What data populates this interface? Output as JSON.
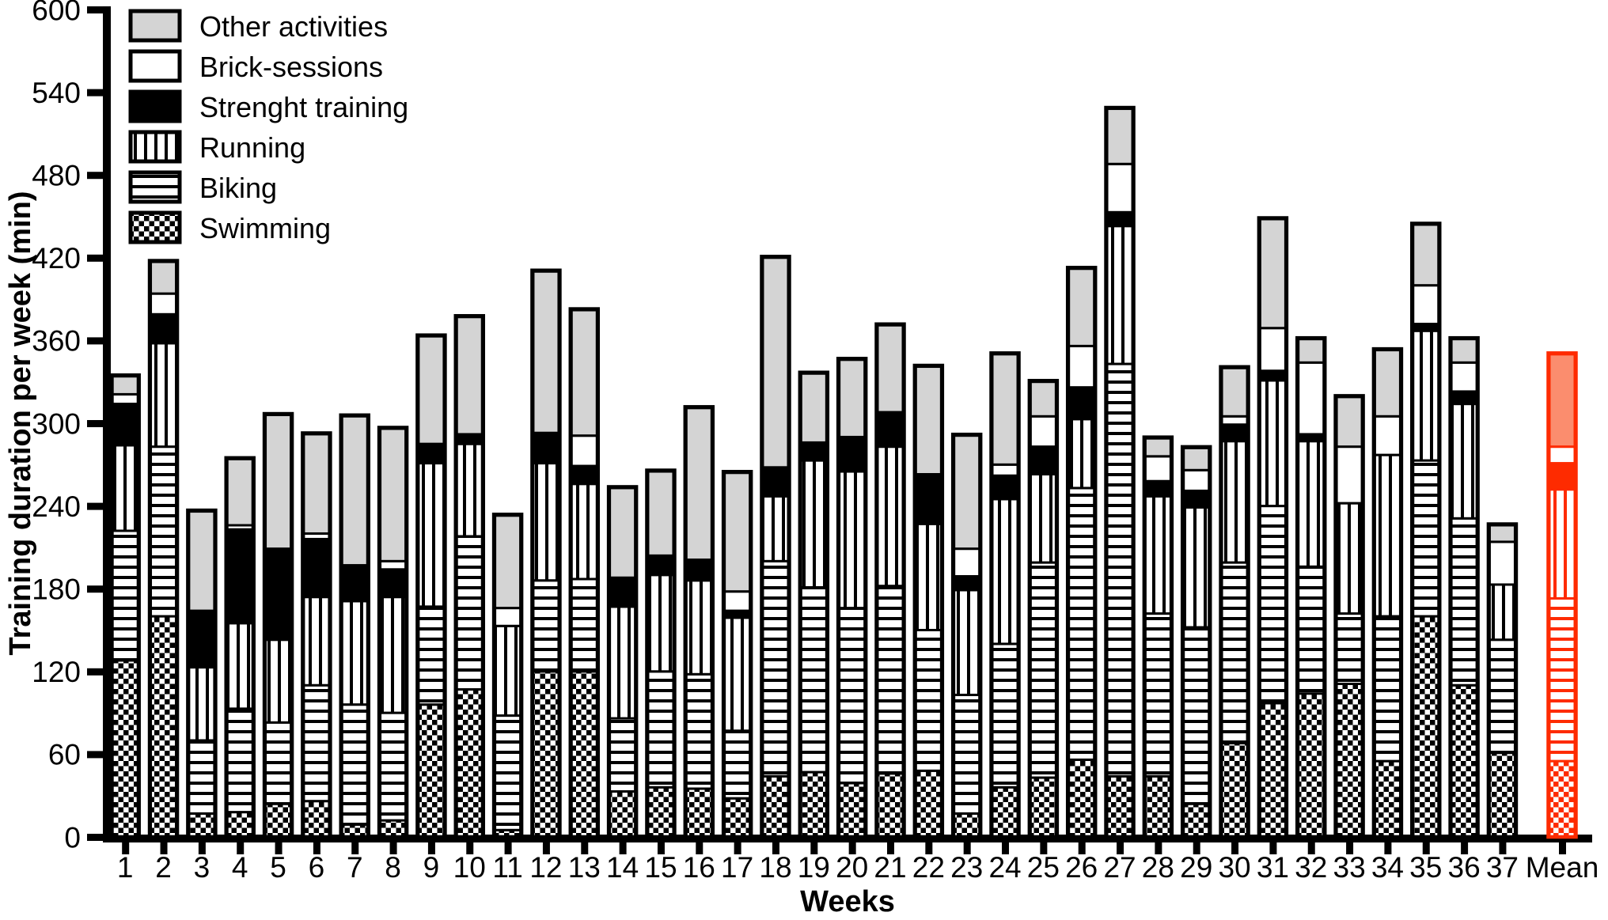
{
  "y_axis": {
    "label": "Training duration per week (min)",
    "min": 0,
    "max": 600,
    "tick_step": 60,
    "ticks": [
      0,
      60,
      120,
      180,
      240,
      300,
      360,
      420,
      480,
      540,
      600
    ]
  },
  "x_axis": {
    "label": "Weeks",
    "categories": [
      "1",
      "2",
      "3",
      "4",
      "5",
      "6",
      "7",
      "8",
      "9",
      "10",
      "11",
      "12",
      "13",
      "14",
      "15",
      "16",
      "17",
      "18",
      "19",
      "20",
      "21",
      "22",
      "23",
      "24",
      "25",
      "26",
      "27",
      "28",
      "29",
      "30",
      "31",
      "32",
      "33",
      "34",
      "35",
      "36",
      "37",
      "Mean"
    ]
  },
  "legend": {
    "items": [
      {
        "label": "Other activities",
        "pattern": "solid-gray"
      },
      {
        "label": "Brick-sessions",
        "pattern": "solid-white"
      },
      {
        "label": "Strenght training",
        "pattern": "solid-black"
      },
      {
        "label": "Running",
        "pattern": "vertical-stripes"
      },
      {
        "label": "Biking",
        "pattern": "horizontal-stripes"
      },
      {
        "label": "Swimming",
        "pattern": "checkerboard"
      }
    ]
  },
  "colors": {
    "black": "#000000",
    "other_gray": "#d4d4d4",
    "white": "#ffffff",
    "mean_accent": "#fe2b00",
    "mean_other_fill": "#fb8d6e"
  },
  "chart_data": {
    "type": "bar",
    "stacked": true,
    "grid": false,
    "legend_position": "top-left-inside",
    "title": "",
    "xlabel": "Weeks",
    "ylabel": "Training duration per week (min)",
    "ylim": [
      0,
      600
    ],
    "categories": [
      "1",
      "2",
      "3",
      "4",
      "5",
      "6",
      "7",
      "8",
      "9",
      "10",
      "11",
      "12",
      "13",
      "14",
      "15",
      "16",
      "17",
      "18",
      "19",
      "20",
      "21",
      "22",
      "23",
      "24",
      "25",
      "26",
      "27",
      "28",
      "29",
      "30",
      "31",
      "32",
      "33",
      "34",
      "35",
      "36",
      "37",
      "Mean"
    ],
    "stack_order_bottom_to_top": [
      "Swimming",
      "Biking",
      "Running",
      "Strenght training",
      "Brick-sessions",
      "Other activities"
    ],
    "series": [
      {
        "name": "Swimming",
        "values": [
          128,
          160,
          17,
          18,
          24,
          26,
          9,
          12,
          96,
          107,
          5,
          120,
          120,
          33,
          36,
          35,
          28,
          44,
          47,
          39,
          46,
          48,
          17,
          36,
          43,
          56,
          44,
          44,
          24,
          68,
          97,
          104,
          111,
          55,
          160,
          110,
          61,
          55
        ]
      },
      {
        "name": "Biking",
        "values": [
          94,
          123,
          53,
          75,
          59,
          84,
          87,
          78,
          71,
          111,
          83,
          66,
          67,
          53,
          84,
          83,
          49,
          156,
          134,
          127,
          136,
          102,
          86,
          104,
          156,
          197,
          299,
          118,
          128,
          131,
          143,
          92,
          51,
          105,
          113,
          121,
          82,
          118
        ]
      },
      {
        "name": "Running",
        "values": [
          62,
          75,
          53,
          62,
          60,
          64,
          75,
          84,
          104,
          67,
          65,
          85,
          69,
          81,
          70,
          68,
          82,
          47,
          92,
          99,
          101,
          77,
          76,
          105,
          64,
          50,
          100,
          85,
          87,
          88,
          91,
          91,
          80,
          117,
          94,
          83,
          40,
          79
        ]
      },
      {
        "name": "Strenght training",
        "values": [
          30,
          21,
          41,
          68,
          66,
          42,
          26,
          20,
          14,
          7,
          0,
          22,
          13,
          21,
          14,
          15,
          5,
          21,
          13,
          25,
          25,
          36,
          10,
          17,
          20,
          23,
          10,
          11,
          12,
          12,
          7,
          5,
          0,
          0,
          5,
          9,
          0,
          19
        ]
      },
      {
        "name": "Brick-sessions",
        "values": [
          7,
          15,
          0,
          3,
          0,
          4,
          0,
          6,
          0,
          0,
          13,
          0,
          22,
          0,
          0,
          0,
          14,
          0,
          0,
          0,
          0,
          0,
          20,
          8,
          22,
          30,
          35,
          18,
          15,
          6,
          31,
          52,
          41,
          28,
          28,
          21,
          31,
          12
        ]
      },
      {
        "name": "Other activities",
        "values": [
          13,
          23,
          72,
          48,
          97,
          72,
          108,
          96,
          78,
          85,
          67,
          117,
          91,
          65,
          61,
          110,
          86,
          152,
          50,
          56,
          63,
          78,
          82,
          80,
          25,
          56,
          40,
          13,
          16,
          35,
          79,
          17,
          36,
          48,
          44,
          17,
          12,
          67
        ]
      }
    ],
    "totals_note": "per-week stacked totals in minutes, read from axis scale"
  }
}
